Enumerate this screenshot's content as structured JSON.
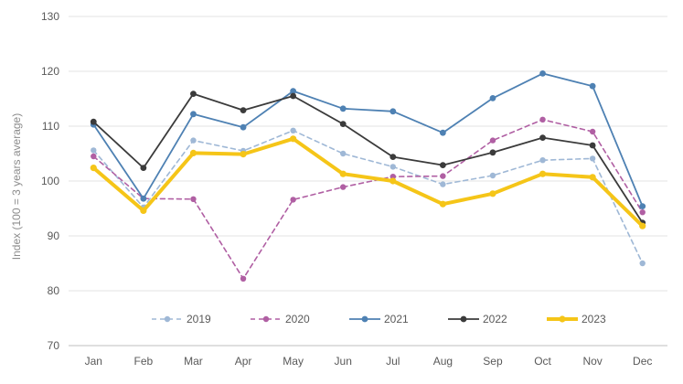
{
  "chart_data": {
    "type": "line",
    "title": "",
    "xlabel": "",
    "ylabel": "Index (100 = 3 years average)",
    "ylim": [
      70,
      130
    ],
    "yticks": [
      70,
      80,
      90,
      100,
      110,
      120,
      130
    ],
    "grid": true,
    "legend_position": "bottom-inside",
    "categories": [
      "Jan",
      "Feb",
      "Mar",
      "Apr",
      "May",
      "Jun",
      "Jul",
      "Aug",
      "Sep",
      "Oct",
      "Nov",
      "Dec"
    ],
    "series": [
      {
        "name": "2019",
        "color": "#9fb8d6",
        "style": "dashed",
        "marker": "circle",
        "values": [
          105.6,
          95.2,
          107.4,
          105.5,
          109.2,
          105.0,
          102.6,
          99.4,
          101.0,
          103.8,
          104.1,
          85.0
        ]
      },
      {
        "name": "2020",
        "color": "#b05fa3",
        "style": "dashed",
        "marker": "circle",
        "values": [
          104.5,
          96.8,
          96.7,
          82.2,
          96.6,
          98.9,
          100.8,
          100.9,
          107.4,
          111.2,
          109.0,
          94.3
        ]
      },
      {
        "name": "2021",
        "color": "#4e81b3",
        "style": "solid",
        "marker": "circle",
        "values": [
          110.3,
          96.8,
          112.2,
          109.8,
          116.4,
          113.2,
          112.7,
          108.8,
          115.1,
          119.6,
          117.3,
          95.4
        ]
      },
      {
        "name": "2022",
        "color": "#3b3b3b",
        "style": "solid",
        "marker": "circle",
        "values": [
          110.8,
          102.4,
          115.9,
          112.9,
          115.5,
          110.4,
          104.4,
          102.9,
          105.2,
          107.9,
          106.5,
          92.4
        ]
      },
      {
        "name": "2023",
        "color": "#f5c518",
        "style": "bold",
        "marker": "circle",
        "values": [
          102.4,
          94.6,
          105.1,
          104.9,
          107.7,
          101.3,
          100.0,
          95.8,
          97.7,
          101.3,
          100.7,
          91.8
        ]
      }
    ]
  }
}
